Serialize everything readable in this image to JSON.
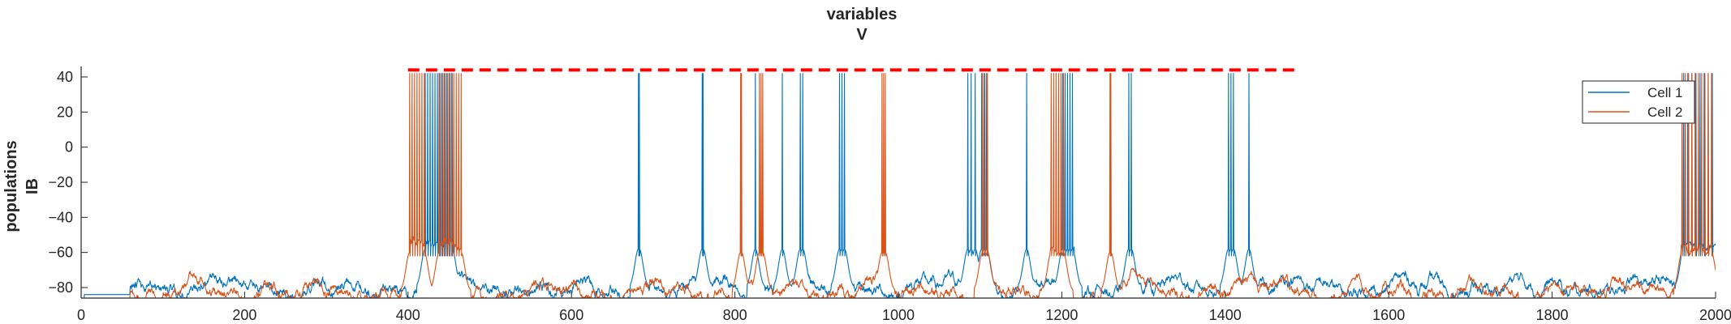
{
  "chart_data": {
    "type": "line",
    "title": [
      "variables",
      "V"
    ],
    "ylabel": [
      "populations",
      "IB"
    ],
    "xlabel": "",
    "xlim": [
      0,
      2000
    ],
    "ylim": [
      -86,
      46
    ],
    "xticks": [
      0,
      200,
      400,
      600,
      800,
      1000,
      1200,
      1400,
      1600,
      1800,
      2000
    ],
    "yticks": [
      -80,
      -60,
      -40,
      -20,
      0,
      20,
      40
    ],
    "legend": {
      "placement": "top-right",
      "entries": [
        "Cell 1",
        "Cell 2"
      ]
    },
    "grid": false,
    "series": [
      {
        "name": "Cell 1",
        "color": "#0072BD",
        "baseline": -80,
        "plateaus": [
          [
            421,
            455,
            -53
          ],
          [
            1199,
            1215,
            -58
          ],
          [
            1958,
            2000,
            -55
          ]
        ],
        "spike_times": [
          421,
          424,
          427,
          430,
          433,
          436,
          439,
          442,
          445,
          448,
          451,
          454,
          682,
          683,
          760,
          761,
          825,
          858,
          880,
          883,
          928,
          931,
          934,
          1085,
          1089,
          1094,
          1102,
          1105,
          1108,
          1157,
          1201,
          1204,
          1207,
          1210,
          1213,
          1282,
          1285,
          1404,
          1407,
          1410,
          1429,
          1961,
          1966,
          1971,
          1976,
          1981,
          1986,
          1991,
          1996
        ]
      },
      {
        "name": "Cell 2",
        "color": "#D95319",
        "baseline": -82,
        "plateaus": [
          [
            402,
            421,
            -54
          ],
          [
            438,
            465,
            -56
          ],
          [
            1186,
            1200,
            -57
          ],
          [
            1958,
            1995,
            -57
          ]
        ],
        "spike_times": [
          402,
          405,
          408,
          411,
          414,
          417,
          420,
          438,
          441,
          444,
          447,
          450,
          453,
          456,
          459,
          462,
          465,
          807,
          808,
          830,
          832,
          834,
          980,
          982,
          984,
          1103,
          1106,
          1109,
          1187,
          1190,
          1193,
          1196,
          1199,
          1202,
          1259,
          1260,
          1959,
          1963,
          1967,
          1971,
          1975,
          1979,
          1983,
          1987,
          1991,
          1995
        ]
      }
    ],
    "annotation": {
      "type": "dashed-line",
      "color": "#FF0000",
      "y": 44,
      "x_range": [
        400,
        1490
      ]
    }
  }
}
